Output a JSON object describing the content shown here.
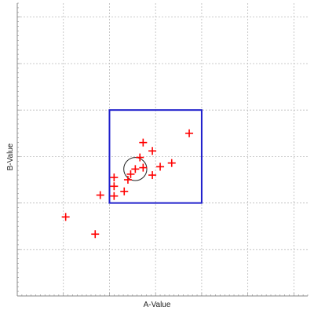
{
  "chart_data": {
    "type": "scatter",
    "xlabel": "A-Value",
    "ylabel": "B-Value",
    "xlim": [
      0,
      6.3
    ],
    "ylim": [
      0,
      6.3
    ],
    "grid": true,
    "grid_style": "dashed",
    "marker": "plus",
    "colors": {
      "points": "#ff0000",
      "box": "#1f1fcc",
      "grid": "#bbbbbb",
      "axis": "#888888"
    },
    "box": {
      "x": [
        2,
        4
      ],
      "y": [
        2,
        4
      ]
    },
    "circle": {
      "center": [
        2.56,
        2.73
      ],
      "radius": 0.25
    },
    "points": [
      {
        "x": 1.05,
        "y": 1.7
      },
      {
        "x": 1.69,
        "y": 1.33
      },
      {
        "x": 1.8,
        "y": 2.17
      },
      {
        "x": 2.1,
        "y": 2.15
      },
      {
        "x": 2.1,
        "y": 2.36
      },
      {
        "x": 2.1,
        "y": 2.55
      },
      {
        "x": 2.32,
        "y": 2.25
      },
      {
        "x": 2.4,
        "y": 2.5
      },
      {
        "x": 2.46,
        "y": 2.62
      },
      {
        "x": 2.56,
        "y": 2.73
      },
      {
        "x": 2.66,
        "y": 2.98
      },
      {
        "x": 2.73,
        "y": 2.76
      },
      {
        "x": 2.73,
        "y": 3.3
      },
      {
        "x": 2.93,
        "y": 2.6
      },
      {
        "x": 2.93,
        "y": 3.12
      },
      {
        "x": 3.1,
        "y": 2.78
      },
      {
        "x": 3.35,
        "y": 2.86
      },
      {
        "x": 3.73,
        "y": 3.5
      }
    ]
  }
}
